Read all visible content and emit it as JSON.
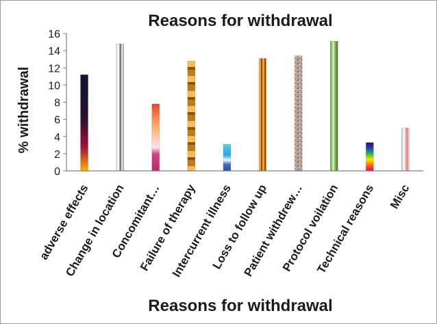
{
  "chart_data": {
    "type": "bar",
    "title": "Reasons for withdrawal",
    "xlabel": "Reasons for withdrawal",
    "ylabel": "% withdrawal",
    "ylim": [
      0,
      16
    ],
    "yticks": [
      0,
      2,
      4,
      6,
      8,
      10,
      12,
      14,
      16
    ],
    "grid": false,
    "legend": "none",
    "categories": [
      "adverse effects",
      "Change in location",
      "Concomitant…",
      "Failure of therapy",
      "Intercurrent illness",
      "Loss to follow up",
      "Patient withdrew…",
      "Protocol voilation",
      "Technical reasons",
      "Misc"
    ],
    "values": [
      11.2,
      14.8,
      7.8,
      12.8,
      3.1,
      13.1,
      13.4,
      15.1,
      3.3,
      5.0
    ]
  }
}
